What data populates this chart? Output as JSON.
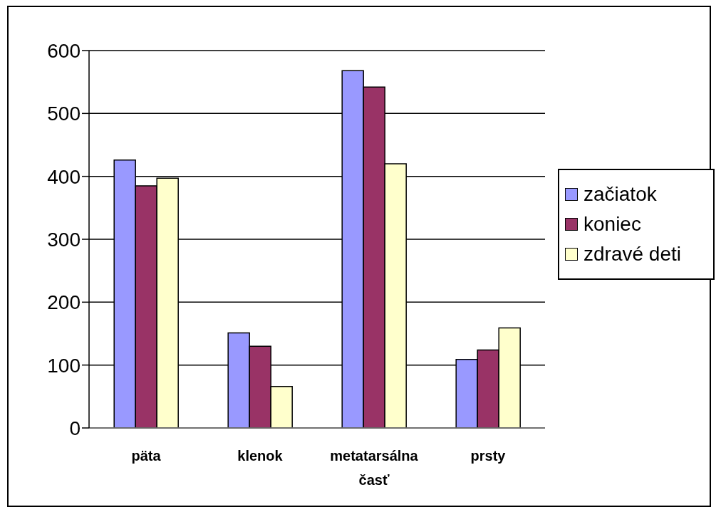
{
  "chart_data": {
    "type": "bar",
    "categories": [
      "päta",
      "klenok",
      "metatarsálna časť",
      "prsty"
    ],
    "series": [
      {
        "name": "začiatok",
        "color": "#9999ff",
        "values": [
          426,
          151,
          568,
          109
        ]
      },
      {
        "name": "koniec",
        "color": "#993366",
        "values": [
          385,
          130,
          542,
          124
        ]
      },
      {
        "name": "zdravé deti",
        "color": "#ffffcc",
        "values": [
          397,
          66,
          420,
          159
        ]
      }
    ],
    "ylim": [
      0,
      600
    ],
    "yticks": [
      0,
      100,
      200,
      300,
      400,
      500,
      600
    ],
    "grid": "y",
    "legend": "right"
  }
}
